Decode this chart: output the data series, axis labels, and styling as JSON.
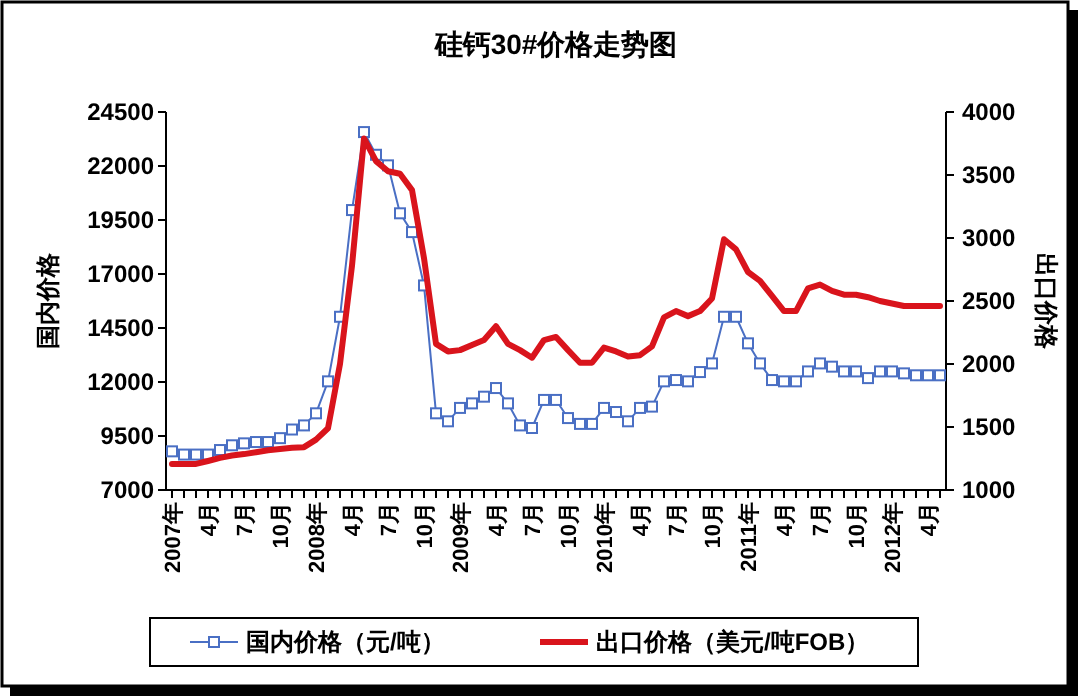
{
  "chart_data": {
    "type": "line",
    "title": "硅钙30#价格走势图",
    "ylabel": "国内价格",
    "y2label": "出口价格",
    "categories": [
      "2007年",
      null,
      null,
      "4月",
      null,
      null,
      "7月",
      null,
      null,
      "10月",
      null,
      null,
      "2008年",
      null,
      null,
      "4月",
      null,
      null,
      "7月",
      null,
      null,
      "10月",
      null,
      null,
      "2009年",
      null,
      null,
      "4月",
      null,
      null,
      "7月",
      null,
      null,
      "10月",
      null,
      null,
      "2010年",
      null,
      null,
      "4月",
      null,
      null,
      "7月",
      null,
      null,
      "10月",
      null,
      null,
      "2011年",
      null,
      null,
      "4月",
      null,
      null,
      "7月",
      null,
      null,
      "10月",
      null,
      null,
      "2012年",
      null,
      null,
      "4月",
      null
    ],
    "ylim": [
      7000,
      24500
    ],
    "yticks": [
      7000,
      9500,
      12000,
      14500,
      17000,
      19500,
      22000,
      24500
    ],
    "y2lim": [
      1000,
      4000
    ],
    "y2ticks": [
      1000,
      1500,
      2000,
      2500,
      3000,
      3500,
      4000
    ],
    "legend": "bottom",
    "grid": false,
    "series": [
      {
        "name": "国内价格（元/吨）",
        "color": "#4a6fc4",
        "marker": "square",
        "values": [
          8790,
          8640,
          8640,
          8640,
          8850,
          9070,
          9160,
          9220,
          9220,
          9400,
          9800,
          9990,
          10550,
          12030,
          15020,
          19960,
          23570,
          22520,
          22030,
          19810,
          18940,
          16470,
          10550,
          10180,
          10800,
          11010,
          11320,
          11720,
          11010,
          9990,
          9870,
          11170,
          11170,
          10330,
          10060,
          10060,
          10800,
          10610,
          10180,
          10800,
          10860,
          12030,
          12090,
          12030,
          12460,
          12860,
          15020,
          15020,
          13790,
          12860,
          12090,
          12030,
          12030,
          12490,
          12860,
          12710,
          12490,
          12490,
          12180,
          12490,
          12490,
          12400,
          12310,
          12310,
          12310
        ]
      },
      {
        "name": "出口价格（美元/吨FOB）",
        "color": "#d9141c",
        "marker": "none",
        "axis": "y2",
        "values": [
          1207,
          1207,
          1207,
          1230,
          1255,
          1274,
          1285,
          1300,
          1315,
          1325,
          1335,
          1340,
          1400,
          1490,
          2000,
          2780,
          3790,
          3610,
          3530,
          3510,
          3380,
          2840,
          2160,
          2100,
          2110,
          2150,
          2190,
          2300,
          2160,
          2110,
          2050,
          2190,
          2215,
          2110,
          2010,
          2010,
          2130,
          2100,
          2060,
          2070,
          2140,
          2370,
          2420,
          2380,
          2420,
          2520,
          2990,
          2910,
          2730,
          2660,
          2540,
          2420,
          2420,
          2600,
          2630,
          2580,
          2550,
          2550,
          2530,
          2500,
          2480,
          2460,
          2460,
          2460,
          2460
        ]
      }
    ]
  }
}
